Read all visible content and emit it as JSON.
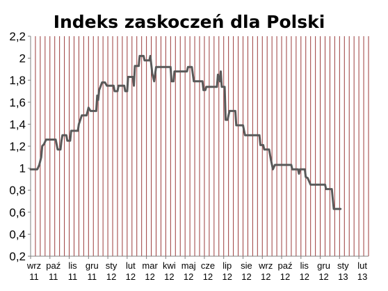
{
  "chart_data": {
    "type": "line",
    "title": "Indeks zaskoczeń dla Polski",
    "xlabel": "",
    "ylabel": "",
    "ylim": [
      0.2,
      2.2
    ],
    "ytick_labels": [
      "0,2",
      "0,4",
      "0,6",
      "0,8",
      "1",
      "1,2",
      "1,4",
      "1,6",
      "1,8",
      "2",
      "2,2"
    ],
    "ytick_values": [
      0.2,
      0.4,
      0.6,
      0.8,
      1.0,
      1.2,
      1.4,
      1.6,
      1.8,
      2.0,
      2.2
    ],
    "x_categories": [
      {
        "month": "wrz",
        "year": "11"
      },
      {
        "month": "paź",
        "year": "11"
      },
      {
        "month": "lis",
        "year": "11"
      },
      {
        "month": "gru",
        "year": "11"
      },
      {
        "month": "sty",
        "year": "12"
      },
      {
        "month": "lut",
        "year": "12"
      },
      {
        "month": "mar",
        "year": "12"
      },
      {
        "month": "kwi",
        "year": "12"
      },
      {
        "month": "maj",
        "year": "12"
      },
      {
        "month": "cze",
        "year": "12"
      },
      {
        "month": "lip",
        "year": "12"
      },
      {
        "month": "sie",
        "year": "12"
      },
      {
        "month": "wrz",
        "year": "12"
      },
      {
        "month": "paź",
        "year": "12"
      },
      {
        "month": "lis",
        "year": "12"
      },
      {
        "month": "gru",
        "year": "12"
      },
      {
        "month": "sty",
        "year": "13"
      },
      {
        "month": "lut",
        "year": "13"
      }
    ],
    "x_range": [
      0,
      17.5
    ],
    "grid": "vertical",
    "series": [
      {
        "points": [
          [
            0.0,
            0.99
          ],
          [
            0.35,
            0.99
          ],
          [
            0.45,
            1.03
          ],
          [
            0.55,
            1.1
          ],
          [
            0.6,
            1.2
          ],
          [
            0.7,
            1.22
          ],
          [
            0.8,
            1.26
          ],
          [
            1.3,
            1.26
          ],
          [
            1.4,
            1.17
          ],
          [
            1.55,
            1.17
          ],
          [
            1.6,
            1.25
          ],
          [
            1.65,
            1.3
          ],
          [
            1.85,
            1.3
          ],
          [
            1.9,
            1.25
          ],
          [
            2.05,
            1.25
          ],
          [
            2.1,
            1.34
          ],
          [
            2.45,
            1.34
          ],
          [
            2.5,
            1.4
          ],
          [
            2.65,
            1.48
          ],
          [
            2.9,
            1.48
          ],
          [
            3.0,
            1.55
          ],
          [
            3.1,
            1.52
          ],
          [
            3.4,
            1.52
          ],
          [
            3.45,
            1.66
          ],
          [
            3.5,
            1.62
          ],
          [
            3.55,
            1.71
          ],
          [
            3.7,
            1.78
          ],
          [
            3.85,
            1.78
          ],
          [
            3.95,
            1.75
          ],
          [
            4.3,
            1.75
          ],
          [
            4.35,
            1.7
          ],
          [
            4.5,
            1.7
          ],
          [
            4.55,
            1.75
          ],
          [
            4.85,
            1.75
          ],
          [
            4.9,
            1.7
          ],
          [
            5.0,
            1.7
          ],
          [
            5.05,
            1.83
          ],
          [
            5.3,
            1.83
          ],
          [
            5.35,
            1.75
          ],
          [
            5.4,
            1.93
          ],
          [
            5.6,
            1.93
          ],
          [
            5.65,
            2.02
          ],
          [
            5.85,
            2.02
          ],
          [
            5.9,
            1.98
          ],
          [
            6.15,
            1.98
          ],
          [
            6.2,
            2.02
          ],
          [
            6.3,
            1.86
          ],
          [
            6.4,
            1.79
          ],
          [
            6.5,
            1.92
          ],
          [
            7.25,
            1.92
          ],
          [
            7.3,
            1.79
          ],
          [
            7.4,
            1.79
          ],
          [
            7.45,
            1.88
          ],
          [
            8.1,
            1.88
          ],
          [
            8.15,
            1.92
          ],
          [
            8.35,
            1.92
          ],
          [
            8.45,
            1.79
          ],
          [
            8.9,
            1.79
          ],
          [
            8.95,
            1.71
          ],
          [
            9.05,
            1.71
          ],
          [
            9.1,
            1.74
          ],
          [
            9.65,
            1.74
          ],
          [
            9.7,
            1.85
          ],
          [
            9.8,
            1.79
          ],
          [
            9.85,
            1.88
          ],
          [
            9.9,
            1.74
          ],
          [
            10.05,
            1.74
          ],
          [
            10.1,
            1.44
          ],
          [
            10.2,
            1.44
          ],
          [
            10.3,
            1.52
          ],
          [
            10.6,
            1.52
          ],
          [
            10.65,
            1.39
          ],
          [
            11.0,
            1.39
          ],
          [
            11.1,
            1.3
          ],
          [
            11.85,
            1.3
          ],
          [
            11.9,
            1.21
          ],
          [
            12.05,
            1.21
          ],
          [
            12.1,
            1.17
          ],
          [
            12.35,
            1.17
          ],
          [
            12.45,
            1.07
          ],
          [
            12.55,
            0.99
          ],
          [
            12.65,
            1.03
          ],
          [
            13.5,
            1.03
          ],
          [
            13.55,
            0.99
          ],
          [
            13.85,
            0.99
          ],
          [
            13.9,
            0.95
          ],
          [
            13.95,
            0.99
          ],
          [
            14.2,
            0.99
          ],
          [
            14.25,
            0.92
          ],
          [
            14.35,
            0.91
          ],
          [
            14.5,
            0.85
          ],
          [
            15.25,
            0.85
          ],
          [
            15.3,
            0.81
          ],
          [
            15.6,
            0.81
          ],
          [
            15.7,
            0.63
          ],
          [
            16.05,
            0.63
          ]
        ]
      }
    ]
  }
}
